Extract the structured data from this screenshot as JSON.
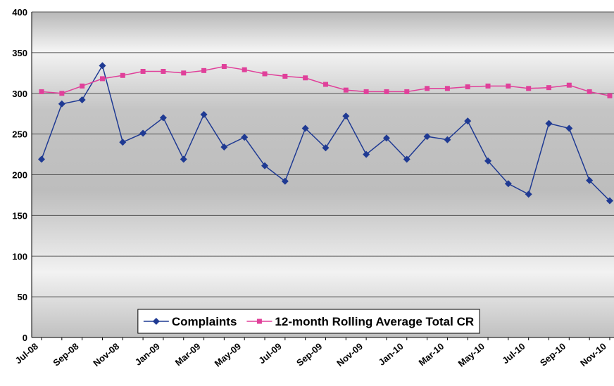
{
  "chart_data": {
    "type": "line",
    "categories": [
      "Jul-08",
      null,
      "Sep-08",
      null,
      "Nov-08",
      null,
      "Jan-09",
      null,
      "Mar-09",
      null,
      "May-09",
      null,
      "Jul-09",
      null,
      "Sep-09",
      null,
      "Nov-09",
      null,
      "Jan-10",
      null,
      "Mar-10",
      null,
      "May-10",
      null,
      "Jul-10",
      null,
      "Sep-10",
      null,
      "Nov-10"
    ],
    "series": [
      {
        "name": "Complaints",
        "color": "#1f3a93",
        "marker": "diamond",
        "values": [
          219,
          287,
          292,
          334,
          240,
          251,
          270,
          219,
          274,
          234,
          246,
          211,
          192,
          257,
          233,
          272,
          225,
          245,
          219,
          247,
          243,
          266,
          217,
          189,
          176,
          263,
          257,
          193,
          168
        ]
      },
      {
        "name": "12-month Rolling Average Total CR",
        "color": "#e0409a",
        "marker": "square",
        "values": [
          302,
          300,
          309,
          318,
          322,
          327,
          327,
          325,
          328,
          333,
          329,
          324,
          321,
          319,
          311,
          304,
          302,
          302,
          302,
          306,
          306,
          308,
          309,
          309,
          306,
          307,
          310,
          302,
          297
        ]
      }
    ],
    "ylim": [
      0,
      400
    ],
    "yticks": [
      0,
      50,
      100,
      150,
      200,
      250,
      300,
      350,
      400
    ],
    "grid": true,
    "legend": "bottom"
  }
}
